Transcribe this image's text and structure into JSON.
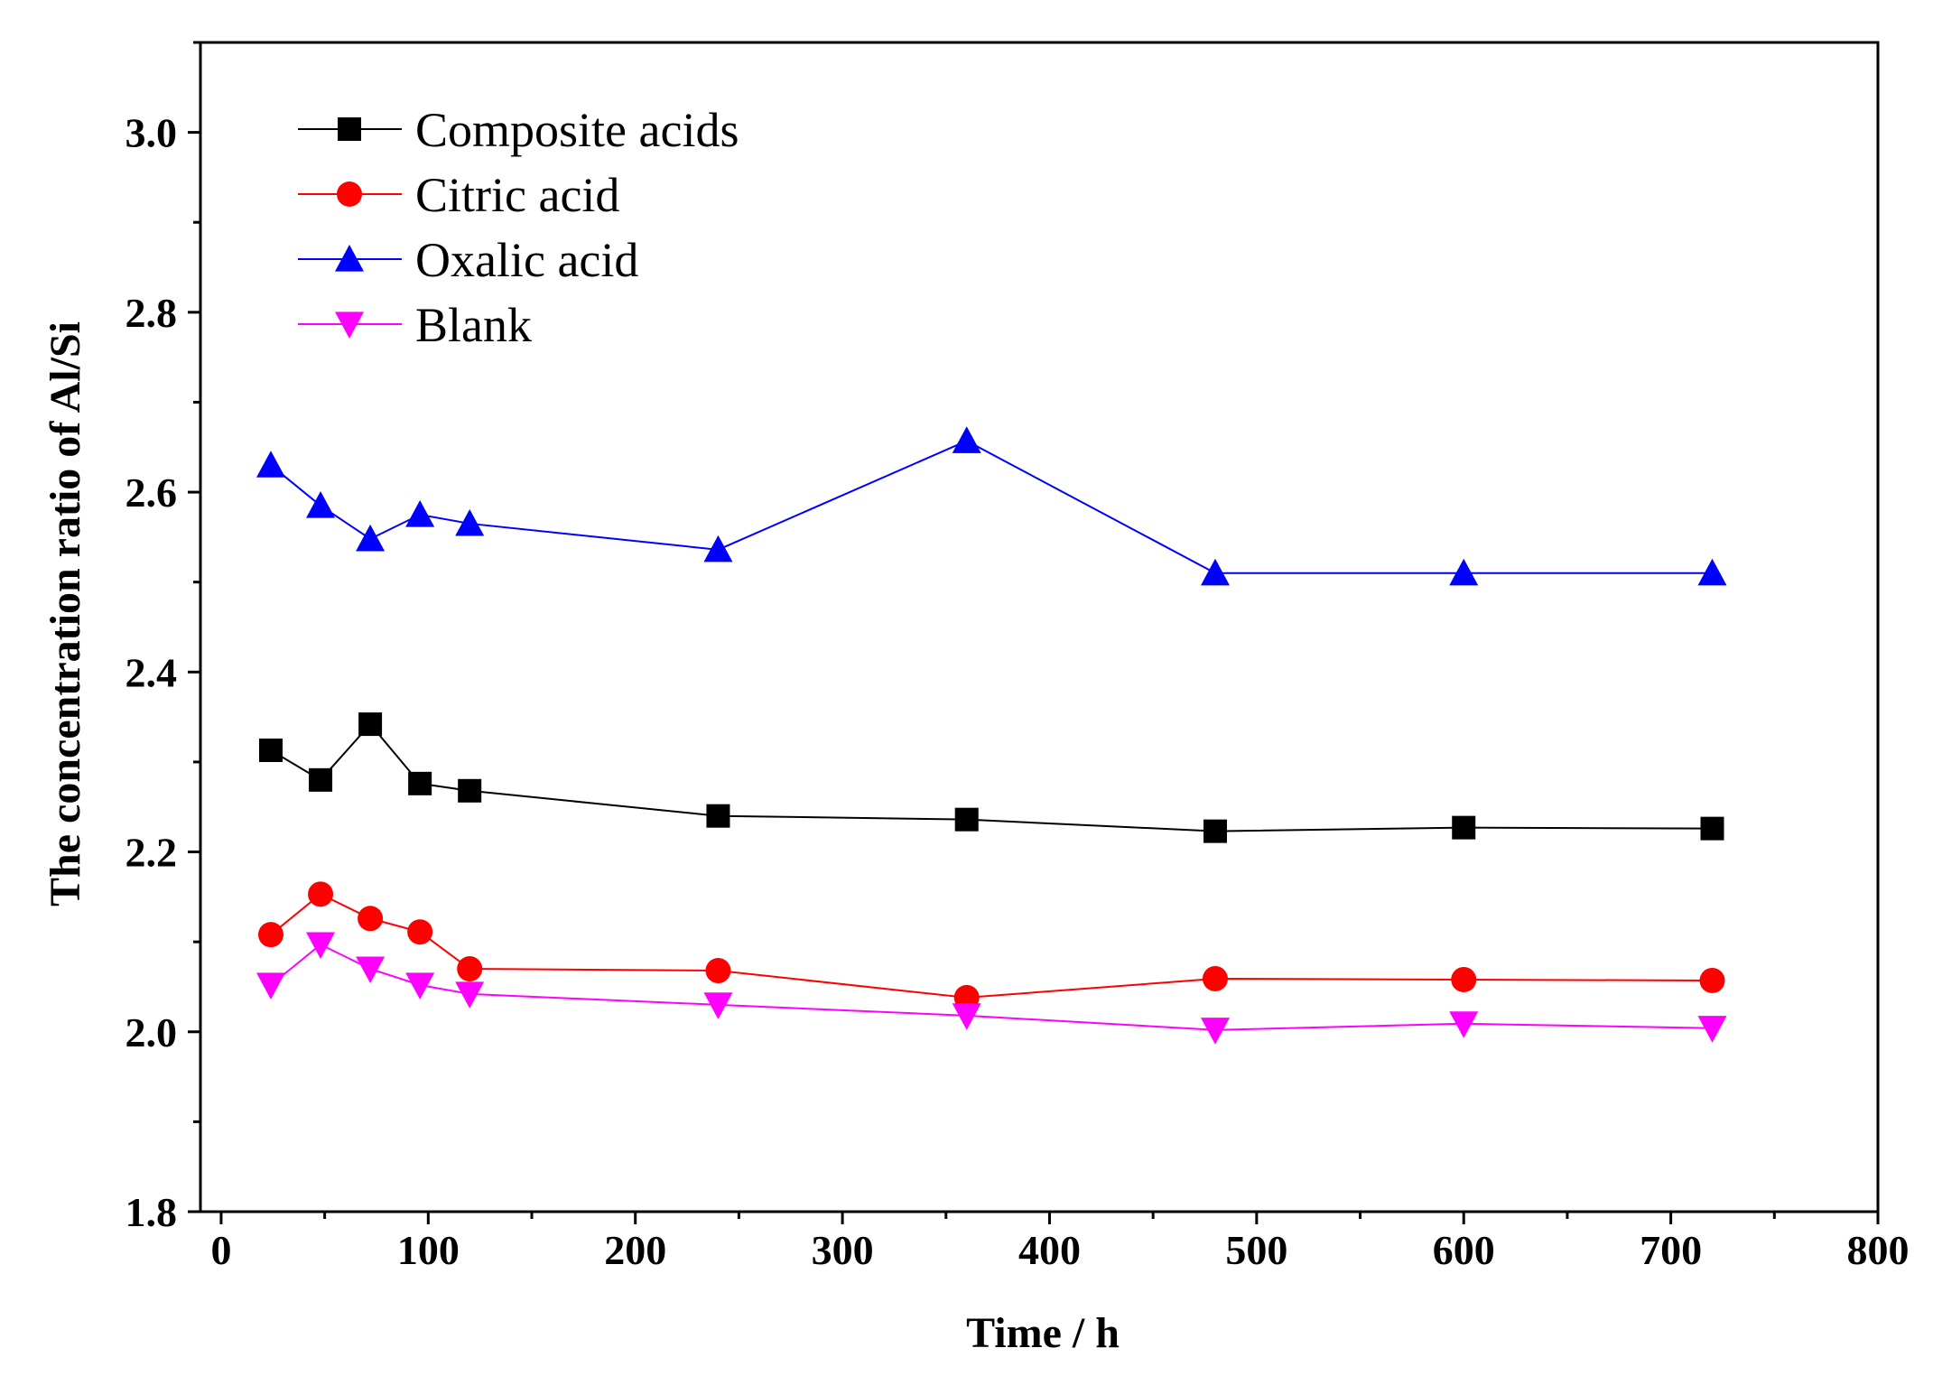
{
  "chart_data": {
    "type": "line",
    "title": "",
    "xlabel": "Time / h",
    "ylabel": "The concentration ratio of Al/Si",
    "xlim": [
      -10,
      800
    ],
    "ylim": [
      1.8,
      3.1
    ],
    "xticks": [
      0,
      100,
      200,
      300,
      400,
      500,
      600,
      700,
      800
    ],
    "xtick_labels": [
      "0",
      "100",
      "200",
      "300",
      "400",
      "500",
      "600",
      "700",
      "800"
    ],
    "yticks": [
      1.8,
      2.0,
      2.2,
      2.4,
      2.6,
      2.8,
      3.0
    ],
    "ytick_labels": [
      "1.8",
      "2.0",
      "2.2",
      "2.4",
      "2.6",
      "2.8",
      "3.0"
    ],
    "grid": false,
    "legend_position": "top-left",
    "x": [
      24,
      48,
      72,
      96,
      120,
      240,
      360,
      480,
      600,
      720
    ],
    "series": [
      {
        "name": "Composite acids",
        "color": "#000000",
        "marker": "square",
        "values": [
          2.313,
          2.28,
          2.342,
          2.276,
          2.268,
          2.24,
          2.236,
          2.223,
          2.227,
          2.226
        ]
      },
      {
        "name": "Citric acid",
        "color": "#ff0000",
        "marker": "circle",
        "values": [
          2.108,
          2.153,
          2.126,
          2.111,
          2.07,
          2.068,
          2.038,
          2.059,
          2.058,
          2.057
        ]
      },
      {
        "name": "Oxalic acid",
        "color": "#0000ff",
        "marker": "triangle-up",
        "values": [
          2.63,
          2.585,
          2.548,
          2.575,
          2.565,
          2.536,
          2.657,
          2.51,
          2.51,
          2.51
        ]
      },
      {
        "name": "Blank",
        "color": "#ff00ff",
        "marker": "triangle-down",
        "values": [
          2.052,
          2.097,
          2.07,
          2.052,
          2.042,
          2.03,
          2.018,
          2.002,
          2.009,
          2.004
        ]
      }
    ]
  }
}
